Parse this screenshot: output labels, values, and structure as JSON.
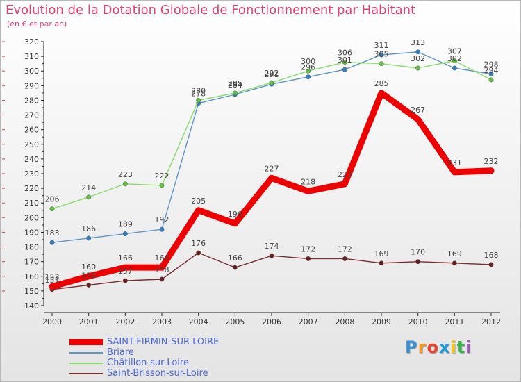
{
  "header": {
    "title": "Evolution de la Dotation Globale de Fonctionnement par Habitant",
    "subtitle": "(en € et par an)"
  },
  "logo": {
    "text": "Proxiti",
    "colors": [
      "#3a8fd9",
      "#f29a1f",
      "#e8442f",
      "#1e9ad6",
      "#f5c518",
      "#3bb34a",
      "#9b59b6"
    ]
  },
  "chart_data": {
    "type": "line",
    "title": "Evolution de la Dotation Globale de Fonctionnement par Habitant",
    "subtitle": "(en € et par an)",
    "xlabel": "",
    "ylabel": "",
    "ylim": [
      140,
      320
    ],
    "ytick_step": 10,
    "grid": false,
    "legend_position": "bottom-left",
    "x": [
      "2000",
      "2001",
      "2002",
      "2003",
      "2004",
      "2005",
      "2006",
      "2007",
      "2008",
      "2009",
      "2010",
      "2011",
      "2012"
    ],
    "series": [
      {
        "name": "SAINT-FIRMIN-SUR-LOIRE",
        "color": "#ee0000",
        "emphasis": "thick",
        "values": [
          153,
          160,
          166,
          166,
          205,
          196,
          227,
          218,
          223,
          285,
          267,
          231,
          232
        ],
        "labels": [
          "153",
          "160",
          "166",
          "166",
          "205",
          "196",
          "227",
          "218",
          "223",
          "285",
          "267",
          "231",
          "232"
        ]
      },
      {
        "name": "Briare",
        "color": "#5b95c9",
        "marker": "#2f7fc4",
        "emphasis": "thin",
        "values": [
          183,
          186,
          189,
          192,
          278,
          284,
          291,
          296,
          301,
          311,
          313,
          302,
          298
        ],
        "labels": [
          "183",
          "186",
          "189",
          "192",
          "278",
          "284",
          "291",
          "296",
          "301",
          "311",
          "313",
          "302",
          "298"
        ]
      },
      {
        "name": "Châtillon-sur-Loire",
        "color": "#86dc6a",
        "marker": "#5ec240",
        "emphasis": "thin",
        "values": [
          206,
          214,
          223,
          222,
          280,
          285,
          292,
          300,
          306,
          305,
          302,
          307,
          294
        ],
        "labels": [
          "206",
          "214",
          "223",
          "222",
          "280",
          "285",
          "292",
          "300",
          "306",
          "305",
          "302",
          "307",
          "294"
        ]
      },
      {
        "name": "Saint-Brisson-sur-Loire",
        "color": "#7d2a2a",
        "marker": "#6a1f1f",
        "emphasis": "thin",
        "values": [
          151,
          154,
          157,
          158,
          176,
          166,
          174,
          172,
          172,
          169,
          170,
          169,
          168
        ],
        "labels": [
          "151",
          "154",
          "157",
          "158",
          "176",
          "166",
          "174",
          "172",
          "172",
          "169",
          "170",
          "169",
          "168"
        ]
      }
    ]
  }
}
